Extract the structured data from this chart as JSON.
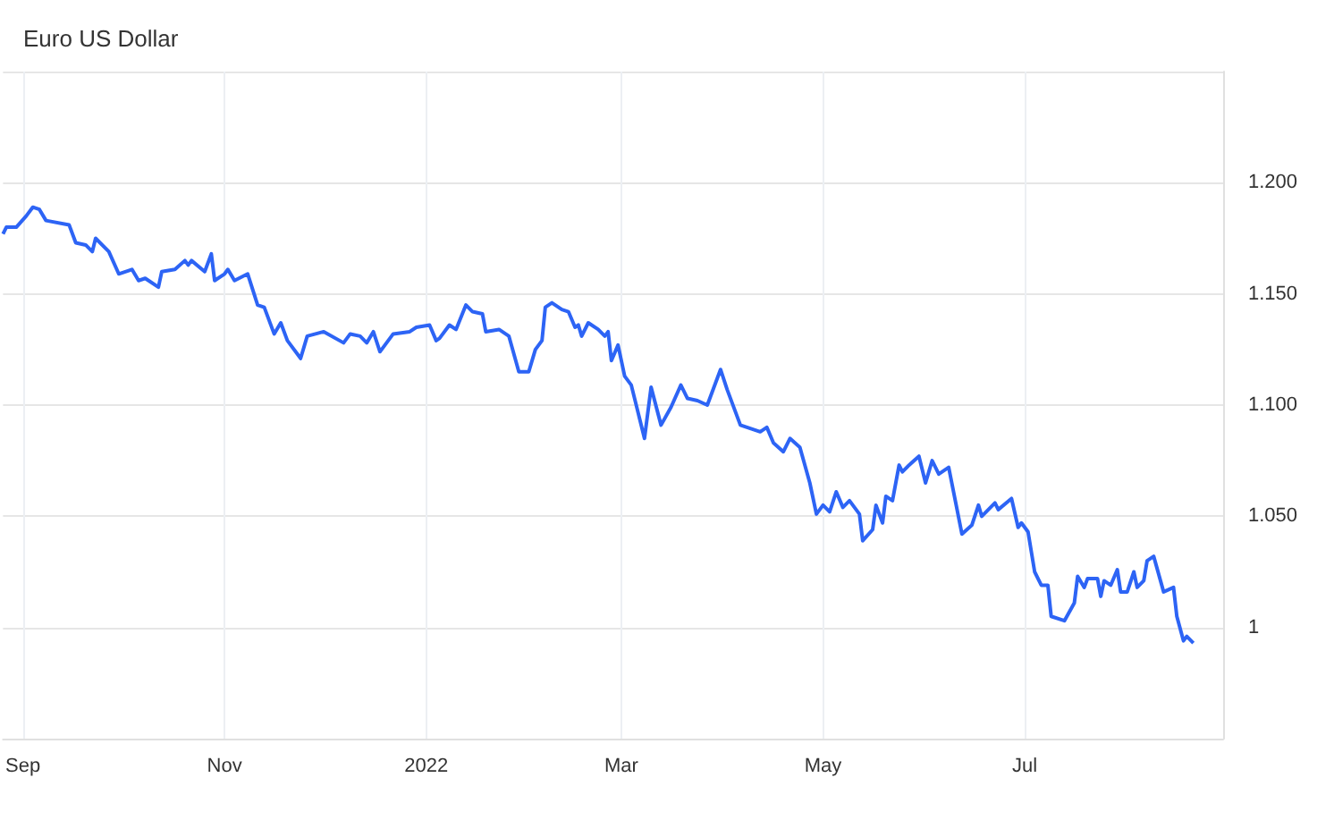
{
  "chart_data": {
    "type": "line",
    "title": "Euro US Dollar",
    "x": [
      "2021-08-26",
      "2021-08-27",
      "2021-08-30",
      "2021-09-02",
      "2021-09-04",
      "2021-09-06",
      "2021-09-08",
      "2021-09-15",
      "2021-09-17",
      "2021-09-20",
      "2021-09-22",
      "2021-09-23",
      "2021-09-27",
      "2021-09-30",
      "2021-10-04",
      "2021-10-06",
      "2021-10-08",
      "2021-10-12",
      "2021-10-13",
      "2021-10-17",
      "2021-10-20",
      "2021-10-21",
      "2021-10-22",
      "2021-10-26",
      "2021-10-28",
      "2021-10-29",
      "2021-11-01",
      "2021-11-02",
      "2021-11-04",
      "2021-11-08",
      "2021-11-11",
      "2021-11-13",
      "2021-11-16",
      "2021-11-18",
      "2021-11-20",
      "2021-11-24",
      "2021-11-26",
      "2021-12-01",
      "2021-12-07",
      "2021-12-09",
      "2021-12-12",
      "2021-12-14",
      "2021-12-16",
      "2021-12-18",
      "2021-12-22",
      "2021-12-27",
      "2021-12-29",
      "2022-01-02",
      "2022-01-04",
      "2022-01-05",
      "2022-01-08",
      "2022-01-10",
      "2022-01-13",
      "2022-01-15",
      "2022-01-18",
      "2022-01-19",
      "2022-01-23",
      "2022-01-26",
      "2022-01-29",
      "2022-02-01",
      "2022-02-03",
      "2022-02-05",
      "2022-02-06",
      "2022-02-08",
      "2022-02-11",
      "2022-02-13",
      "2022-02-15",
      "2022-02-16",
      "2022-02-17",
      "2022-02-19",
      "2022-02-22",
      "2022-02-24",
      "2022-02-25",
      "2022-02-26",
      "2022-02-28",
      "2022-03-02",
      "2022-03-04",
      "2022-03-08",
      "2022-03-10",
      "2022-03-13",
      "2022-03-16",
      "2022-03-19",
      "2022-03-21",
      "2022-03-24",
      "2022-03-27",
      "2022-03-31",
      "2022-04-02",
      "2022-04-06",
      "2022-04-12",
      "2022-04-14",
      "2022-04-16",
      "2022-04-19",
      "2022-04-21",
      "2022-04-24",
      "2022-04-27",
      "2022-04-29",
      "2022-05-01",
      "2022-05-03",
      "2022-05-05",
      "2022-05-07",
      "2022-05-09",
      "2022-05-12",
      "2022-05-13",
      "2022-05-16",
      "2022-05-17",
      "2022-05-19",
      "2022-05-20",
      "2022-05-22",
      "2022-05-24",
      "2022-05-25",
      "2022-05-27",
      "2022-05-30",
      "2022-06-01",
      "2022-06-03",
      "2022-06-05",
      "2022-06-08",
      "2022-06-12",
      "2022-06-15",
      "2022-06-17",
      "2022-06-18",
      "2022-06-22",
      "2022-06-23",
      "2022-06-27",
      "2022-06-29",
      "2022-06-30",
      "2022-07-02",
      "2022-07-04",
      "2022-07-06",
      "2022-07-08",
      "2022-07-09",
      "2022-07-13",
      "2022-07-16",
      "2022-07-17",
      "2022-07-19",
      "2022-07-20",
      "2022-07-23",
      "2022-07-24",
      "2022-07-25",
      "2022-07-27",
      "2022-07-29",
      "2022-07-30",
      "2022-08-01",
      "2022-08-03",
      "2022-08-04",
      "2022-08-06",
      "2022-08-07",
      "2022-08-09",
      "2022-08-12",
      "2022-08-15",
      "2022-08-16",
      "2022-08-18",
      "2022-08-19",
      "2022-08-21"
    ],
    "series": [
      {
        "color": "#2d64f5",
        "values": [
          1.177,
          1.18,
          1.18,
          1.185,
          1.189,
          1.188,
          1.183,
          1.181,
          1.173,
          1.172,
          1.169,
          1.175,
          1.169,
          1.159,
          1.161,
          1.156,
          1.157,
          1.153,
          1.16,
          1.161,
          1.165,
          1.163,
          1.165,
          1.16,
          1.168,
          1.156,
          1.159,
          1.161,
          1.156,
          1.159,
          1.145,
          1.144,
          1.132,
          1.137,
          1.129,
          1.121,
          1.131,
          1.133,
          1.128,
          1.132,
          1.131,
          1.128,
          1.133,
          1.124,
          1.132,
          1.133,
          1.135,
          1.136,
          1.129,
          1.13,
          1.136,
          1.134,
          1.145,
          1.142,
          1.141,
          1.133,
          1.134,
          1.131,
          1.115,
          1.115,
          1.125,
          1.129,
          1.144,
          1.146,
          1.143,
          1.142,
          1.135,
          1.136,
          1.131,
          1.137,
          1.134,
          1.131,
          1.133,
          1.12,
          1.127,
          1.113,
          1.109,
          1.085,
          1.108,
          1.091,
          1.099,
          1.109,
          1.103,
          1.102,
          1.1,
          1.116,
          1.107,
          1.091,
          1.088,
          1.09,
          1.083,
          1.079,
          1.085,
          1.081,
          1.065,
          1.051,
          1.055,
          1.052,
          1.061,
          1.054,
          1.057,
          1.051,
          1.039,
          1.044,
          1.055,
          1.047,
          1.059,
          1.057,
          1.073,
          1.07,
          1.073,
          1.077,
          1.065,
          1.075,
          1.069,
          1.072,
          1.042,
          1.046,
          1.055,
          1.05,
          1.056,
          1.053,
          1.058,
          1.045,
          1.047,
          1.043,
          1.025,
          1.019,
          1.019,
          1.005,
          1.003,
          1.011,
          1.023,
          1.018,
          1.022,
          1.022,
          1.014,
          1.021,
          1.019,
          1.026,
          1.016,
          1.016,
          1.025,
          1.018,
          1.021,
          1.03,
          1.032,
          1.016,
          1.018,
          1.005,
          0.994,
          0.996,
          0.993
        ]
      }
    ],
    "xlim": [
      "2021-08-26",
      "2022-08-30"
    ],
    "xticks": [
      {
        "value": "2021-09-01",
        "label": "Sep"
      },
      {
        "value": "2021-11-01",
        "label": "Nov"
      },
      {
        "value": "2022-01-01",
        "label": "2022"
      },
      {
        "value": "2022-03-01",
        "label": "Mar"
      },
      {
        "value": "2022-05-01",
        "label": "May"
      },
      {
        "value": "2022-07-01",
        "label": "Jul"
      }
    ],
    "ylim": [
      0.95,
      1.25
    ],
    "yticks": [
      1,
      {
        "value": 1.05,
        "label": "1.050"
      },
      {
        "value": 1.1,
        "label": "1.100"
      },
      {
        "value": 1.15,
        "label": "1.150"
      },
      {
        "value": 1.2,
        "label": "1.200"
      },
      {
        "value": 1.25,
        "label": null
      }
    ],
    "grid": true,
    "marker": "none",
    "line_style": "solid"
  }
}
